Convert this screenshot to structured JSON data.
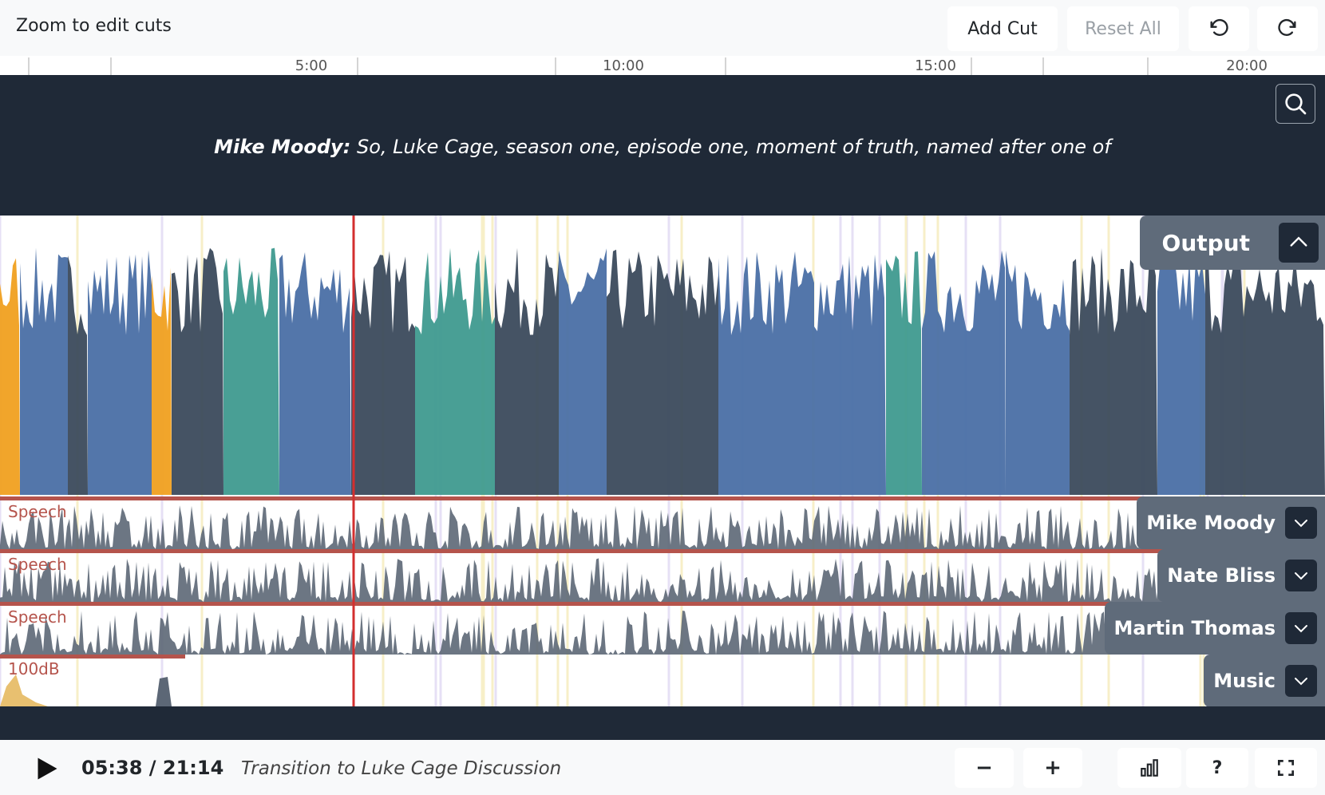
{
  "toolbar": {
    "zoom_hint": "Zoom to edit cuts",
    "add_cut_label": "Add Cut",
    "reset_all_label": "Reset All",
    "undo_icon": "undo-icon",
    "redo_icon": "redo-icon"
  },
  "ruler": {
    "labels": [
      "5:00",
      "10:00",
      "15:00",
      "20:00"
    ]
  },
  "caption": {
    "speaker": "Mike Moody:",
    "text": "So, Luke Cage, season one, episode one, moment of truth, named after one of",
    "search_icon": "search-icon"
  },
  "tracks": {
    "output": {
      "label": "Output",
      "icon": "chevron-up-icon"
    },
    "items": [
      {
        "name": "Mike Moody",
        "tag": "Speech",
        "icon": "chevron-down-icon"
      },
      {
        "name": "Nate Bliss",
        "tag": "Speech",
        "icon": "chevron-down-icon"
      },
      {
        "name": "Martin Thomas",
        "tag": "Speech",
        "icon": "chevron-down-icon"
      },
      {
        "name": "Music",
        "tag": "100dB",
        "icon": "chevron-down-icon"
      }
    ]
  },
  "player": {
    "time": "05:38 / 21:14",
    "chapter": "Transition to Luke Cage Discussion",
    "current_seconds": 338,
    "total_seconds": 1274
  },
  "controls": {
    "zoom_out_glyph": "−",
    "zoom_in_glyph": "+",
    "help_glyph": "?",
    "stats_icon": "bar-chart-icon",
    "fullscreen_icon": "fullscreen-icon",
    "play_icon": "play-icon"
  },
  "colors": {
    "dark_panel": "#1f2937",
    "playhead": "#d32f2f",
    "mike": "#4a6fa5",
    "nate": "#3b4a5c",
    "martin": "#3f9a8f",
    "music": "#f0a020"
  }
}
